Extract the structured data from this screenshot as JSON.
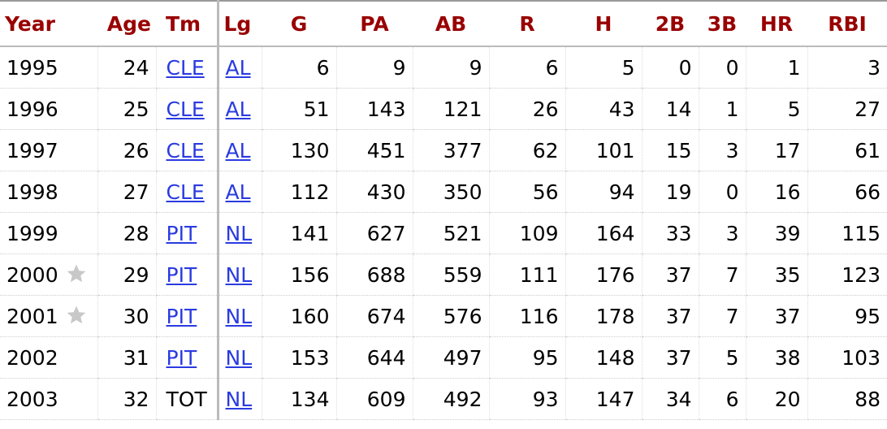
{
  "table": {
    "header": [
      "Year",
      "Age",
      "Tm",
      "Lg",
      "G",
      "PA",
      "AB",
      "R",
      "H",
      "2B",
      "3B",
      "HR",
      "RBI"
    ],
    "rows": [
      [
        "1995",
        24,
        "CLE",
        "AL",
        6,
        9,
        9,
        6,
        5,
        0,
        0,
        1,
        3
      ],
      [
        "1996",
        25,
        "CLE",
        "AL",
        51,
        143,
        121,
        26,
        43,
        14,
        1,
        5,
        27
      ],
      [
        "1997",
        26,
        "CLE",
        "AL",
        130,
        451,
        377,
        62,
        101,
        15,
        3,
        17,
        61
      ],
      [
        "1998",
        27,
        "CLE",
        "AL",
        112,
        430,
        350,
        56,
        94,
        19,
        0,
        16,
        66
      ],
      [
        "1999",
        28,
        "PIT",
        "NL",
        141,
        627,
        521,
        109,
        164,
        33,
        3,
        39,
        115
      ],
      [
        "2000",
        29,
        "PIT",
        "NL",
        156,
        688,
        559,
        111,
        176,
        37,
        7,
        35,
        123
      ],
      [
        "2001",
        30,
        "PIT",
        "NL",
        160,
        674,
        576,
        116,
        178,
        37,
        7,
        37,
        95
      ],
      [
        "2002",
        31,
        "PIT",
        "NL",
        153,
        644,
        497,
        95,
        148,
        37,
        5,
        38,
        103
      ],
      [
        "2003",
        32,
        "TOT",
        "NL",
        134,
        609,
        492,
        93,
        147,
        34,
        6,
        20,
        88
      ]
    ]
  }
}
